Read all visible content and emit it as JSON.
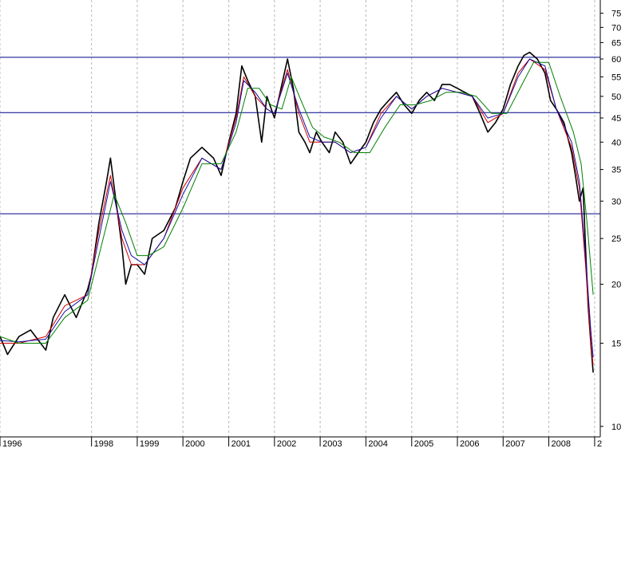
{
  "chart_data": {
    "type": "line",
    "title": "",
    "xlabel": "",
    "ylabel": "",
    "y_scale": "log",
    "ylim": [
      9.5,
      80
    ],
    "xlim": [
      "1996-01-01",
      "2009-02-15"
    ],
    "grid": {
      "vertical_dashed": true,
      "horizontal": false
    },
    "y_ticks": [
      10,
      15,
      20,
      25,
      30,
      35,
      40,
      45,
      50,
      55,
      60,
      65,
      70,
      75
    ],
    "x_ticks": [
      {
        "date": "1996-01-01",
        "label": "1996"
      },
      {
        "date": "1998-01-01",
        "label": "1998"
      },
      {
        "date": "1999-01-01",
        "label": "1999"
      },
      {
        "date": "2000-01-01",
        "label": "2000"
      },
      {
        "date": "2001-01-01",
        "label": "2001"
      },
      {
        "date": "2002-01-01",
        "label": "2002"
      },
      {
        "date": "2003-01-01",
        "label": "2003"
      },
      {
        "date": "2004-01-01",
        "label": "2004"
      },
      {
        "date": "2005-01-01",
        "label": "2005"
      },
      {
        "date": "2006-01-01",
        "label": "2006"
      },
      {
        "date": "2007-01-01",
        "label": "2007"
      },
      {
        "date": "2008-01-01",
        "label": "2008"
      },
      {
        "date": "2009-01-01",
        "label": "2"
      }
    ],
    "horizontal_lines": [
      {
        "value": 60.5,
        "color": "#00008b"
      },
      {
        "value": 46.2,
        "color": "#00008b"
      },
      {
        "value": 28.2,
        "color": "#00008b"
      }
    ],
    "series": [
      {
        "color": "#000000",
        "x": [
          "1996-01-01",
          "1996-03-01",
          "1996-06-01",
          "1996-09-01",
          "1997-01-01",
          "1997-03-01",
          "1997-06-01",
          "1997-09-01",
          "1997-12-01",
          "1998-01-01",
          "1998-03-01",
          "1998-05-01",
          "1998-06-01",
          "1998-07-15",
          "1998-09-01",
          "1998-10-01",
          "1998-11-15",
          "1999-01-01",
          "1999-03-01",
          "1999-05-01",
          "1999-08-01",
          "1999-11-01",
          "2000-01-01",
          "2000-03-01",
          "2000-06-01",
          "2000-09-01",
          "2000-11-01",
          "2001-01-01",
          "2001-03-01",
          "2001-04-15",
          "2001-06-01",
          "2001-08-01",
          "2001-09-21",
          "2001-11-01",
          "2002-01-01",
          "2002-03-01",
          "2002-04-15",
          "2002-06-01",
          "2002-07-15",
          "2002-09-01",
          "2002-10-10",
          "2002-12-01",
          "2003-01-15",
          "2003-03-15",
          "2003-05-01",
          "2003-07-01",
          "2003-09-01",
          "2003-11-01",
          "2004-01-01",
          "2004-03-01",
          "2004-05-01",
          "2004-07-01",
          "2004-09-01",
          "2004-11-01",
          "2005-01-01",
          "2005-03-01",
          "2005-05-01",
          "2005-07-01",
          "2005-09-01",
          "2005-11-01",
          "2006-01-01",
          "2006-03-01",
          "2006-05-01",
          "2006-07-01",
          "2006-09-01",
          "2006-11-01",
          "2007-01-01",
          "2007-03-01",
          "2007-05-01",
          "2007-06-15",
          "2007-08-01",
          "2007-10-01",
          "2007-12-01",
          "2008-01-15",
          "2008-03-01",
          "2008-05-01",
          "2008-07-01",
          "2008-08-01",
          "2008-09-01",
          "2008-10-01",
          "2008-10-20",
          "2008-11-10",
          "2008-12-01",
          "2008-12-20"
        ],
        "y": [
          15.5,
          14.2,
          15.5,
          16,
          14.5,
          17,
          19,
          17,
          19.5,
          21,
          27,
          33,
          37,
          30,
          24,
          20,
          22,
          22,
          21,
          25,
          26,
          29,
          33,
          37,
          39,
          37,
          34,
          40,
          46,
          58,
          54,
          50,
          40,
          50,
          45,
          53,
          60,
          52,
          42,
          40,
          38,
          42,
          40,
          38,
          42,
          40,
          36,
          38,
          40,
          44,
          47,
          49,
          51,
          48,
          46,
          49,
          51,
          49,
          53,
          53,
          52,
          51,
          50,
          46,
          42,
          44,
          47,
          53,
          58,
          61,
          62,
          60,
          56,
          49,
          47,
          44,
          38,
          34,
          30,
          32,
          24,
          18,
          15,
          13
        ]
      },
      {
        "color": "#d00000",
        "x": [
          "1996-01-01",
          "1996-06-01",
          "1997-01-01",
          "1997-06-01",
          "1997-12-01",
          "1998-03-01",
          "1998-06-01",
          "1998-09-01",
          "1998-11-15",
          "1999-03-01",
          "1999-08-01",
          "2000-01-01",
          "2000-06-01",
          "2000-11-01",
          "2001-03-01",
          "2001-05-01",
          "2001-08-01",
          "2001-11-01",
          "2002-01-01",
          "2002-04-15",
          "2002-07-15",
          "2002-10-10",
          "2003-01-15",
          "2003-05-01",
          "2003-09-01",
          "2004-01-01",
          "2004-05-01",
          "2004-09-01",
          "2005-01-01",
          "2005-05-01",
          "2005-09-01",
          "2006-01-01",
          "2006-05-01",
          "2006-09-01",
          "2007-01-01",
          "2007-05-01",
          "2007-08-01",
          "2007-12-01",
          "2008-03-01",
          "2008-07-01",
          "2008-09-01",
          "2008-10-20",
          "2008-12-01",
          "2008-12-20"
        ],
        "y": [
          15,
          15,
          15.5,
          18,
          19,
          26,
          34,
          25,
          22,
          22,
          25,
          32,
          37,
          35,
          45,
          55,
          50,
          47,
          46,
          57,
          46,
          40,
          40,
          40,
          38,
          39,
          46,
          50,
          47,
          50,
          52,
          51,
          50,
          44,
          46,
          56,
          60,
          57,
          47,
          39,
          32,
          22,
          15,
          13.5
        ]
      },
      {
        "color": "#1010a0",
        "x": [
          "1996-01-01",
          "1996-06-01",
          "1997-01-01",
          "1997-06-01",
          "1997-12-01",
          "1998-03-01",
          "1998-06-01",
          "1998-09-01",
          "1998-11-15",
          "1999-03-01",
          "1999-08-01",
          "2000-01-01",
          "2000-06-01",
          "2000-11-01",
          "2001-03-01",
          "2001-05-01",
          "2001-08-01",
          "2001-11-01",
          "2002-01-01",
          "2002-04-15",
          "2002-07-15",
          "2002-10-10",
          "2003-01-15",
          "2003-05-01",
          "2003-09-01",
          "2004-01-01",
          "2004-05-01",
          "2004-09-01",
          "2005-01-01",
          "2005-05-01",
          "2005-09-01",
          "2006-01-01",
          "2006-05-01",
          "2006-09-01",
          "2007-01-01",
          "2007-05-01",
          "2007-08-01",
          "2007-12-01",
          "2008-03-01",
          "2008-07-01",
          "2008-09-01",
          "2008-10-20",
          "2008-12-01",
          "2008-12-20"
        ],
        "y": [
          15.2,
          15.1,
          15.3,
          17.5,
          19,
          25,
          33,
          26,
          23,
          22,
          25,
          31,
          37,
          35,
          44,
          54,
          51,
          47,
          46,
          56,
          47,
          41,
          40,
          40,
          38,
          39,
          45,
          50,
          47,
          50,
          52,
          51,
          50,
          45,
          46,
          55,
          60,
          58,
          47,
          40,
          33,
          23,
          16,
          14
        ]
      },
      {
        "color": "#008000",
        "x": [
          "1996-01-01",
          "1996-06-01",
          "1997-01-01",
          "1997-06-01",
          "1997-12-01",
          "1998-03-01",
          "1998-07-01",
          "1998-10-01",
          "1999-01-01",
          "1999-04-01",
          "1999-08-01",
          "2000-01-01",
          "2000-06-01",
          "2000-11-01",
          "2001-03-01",
          "2001-06-01",
          "2001-09-01",
          "2001-12-01",
          "2002-03-01",
          "2002-05-15",
          "2002-08-01",
          "2002-11-01",
          "2003-02-01",
          "2003-06-01",
          "2003-10-01",
          "2004-02-01",
          "2004-06-01",
          "2004-10-01",
          "2005-02-01",
          "2005-06-01",
          "2005-10-01",
          "2006-02-01",
          "2006-06-01",
          "2006-10-01",
          "2007-02-01",
          "2007-06-01",
          "2007-09-01",
          "2008-01-01",
          "2008-04-01",
          "2008-07-15",
          "2008-09-15",
          "2008-11-01",
          "2008-12-20"
        ],
        "y": [
          15.5,
          15,
          15,
          17,
          18.5,
          23,
          31,
          27,
          23,
          23,
          24,
          29,
          36,
          36,
          42,
          52,
          52,
          48,
          47,
          55,
          49,
          43,
          41,
          40,
          38,
          38,
          43,
          48,
          48,
          49,
          51,
          51,
          50,
          46,
          46,
          53,
          59,
          59,
          50,
          42,
          36,
          27,
          19
        ]
      }
    ]
  }
}
